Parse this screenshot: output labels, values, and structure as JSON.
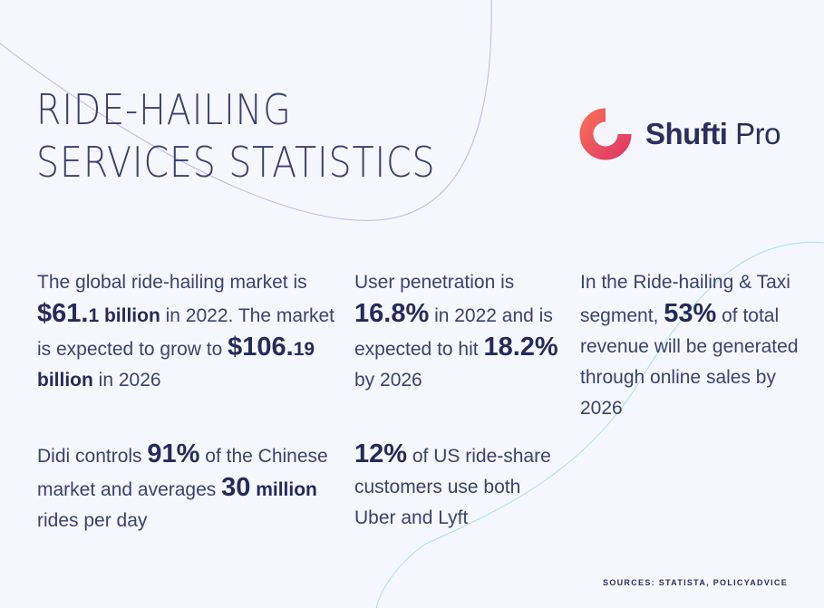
{
  "title": {
    "line1": "RIDE-HAILING",
    "line2": "SERVICES STATISTICS"
  },
  "logo": {
    "brand": "Shufti",
    "suffix": "Pro"
  },
  "colors": {
    "background": "#f5f7fd",
    "text": "#2a2f5c",
    "logo_start": "#f66b5a",
    "logo_end": "#e23a63",
    "curve_purple": "#b7b3e6",
    "curve_teal": "#a8e2de"
  },
  "stats": {
    "market": {
      "t1": "The global ride-hailing market is ",
      "v1_big": "$61.",
      "v1_small": "1 billion",
      "t2": " in 2022. The market is expected to grow to ",
      "v2_big": "$106.",
      "v2_small": "19 billion",
      "t3": " in 2026"
    },
    "penetration": {
      "v1": "16.8%",
      "t1": "User penetration is ",
      "t2": " in 2022 and is expected to hit ",
      "v2": "18.2%",
      "t3": " by 2026"
    },
    "taxi": {
      "t1": "In the Ride-hailing & Taxi segment, ",
      "v1": "53%",
      "t2": " of total revenue will be generated through online sales by 2026"
    },
    "didi": {
      "t1": "Didi controls ",
      "v1": "91%",
      "t2": " of the Chinese market and averages ",
      "v2_big": "30",
      "v2_small": " million",
      "t3": " rides per day"
    },
    "uber": {
      "v1": "12%",
      "t1": " of US ride-share customers use both Uber and Lyft"
    }
  },
  "sources": "SOURCES: STATISTA, POLICYADVICE"
}
